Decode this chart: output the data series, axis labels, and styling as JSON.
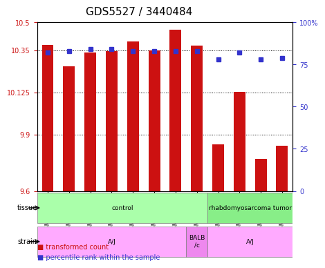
{
  "title": "GDS5527 / 3440484",
  "samples": [
    "GSM738156",
    "GSM738160",
    "GSM738161",
    "GSM738162",
    "GSM738164",
    "GSM738165",
    "GSM738166",
    "GSM738163",
    "GSM738155",
    "GSM738157",
    "GSM738158",
    "GSM738159"
  ],
  "red_values": [
    10.38,
    10.265,
    10.34,
    10.345,
    10.4,
    10.35,
    10.46,
    10.375,
    9.85,
    10.13,
    9.77,
    9.84
  ],
  "blue_values": [
    82,
    83,
    84,
    84,
    83,
    83,
    83,
    83,
    78,
    82,
    78,
    79
  ],
  "ylim_left": [
    9.6,
    10.5
  ],
  "ylim_right": [
    0,
    100
  ],
  "yticks_left": [
    9.6,
    9.9,
    10.125,
    10.35,
    10.5
  ],
  "yticks_left_labels": [
    "9.6",
    "9.9",
    "10.125",
    "10.35",
    "10.5"
  ],
  "yticks_right": [
    0,
    25,
    50,
    75,
    100
  ],
  "yticks_right_labels": [
    "0",
    "25",
    "50",
    "75",
    "100%"
  ],
  "hlines": [
    9.9,
    10.125,
    10.35
  ],
  "bar_color": "#cc1111",
  "dot_color": "#3333cc",
  "tissue_groups": [
    {
      "label": "control",
      "start": 0,
      "end": 8,
      "color": "#aaffaa"
    },
    {
      "label": "rhabdomyosarcoma tumor",
      "start": 8,
      "end": 12,
      "color": "#88ee88"
    }
  ],
  "strain_groups": [
    {
      "label": "A/J",
      "start": 0,
      "end": 7,
      "color": "#ffaaff"
    },
    {
      "label": "BALB\n/c",
      "start": 7,
      "end": 8,
      "color": "#ee88ee"
    },
    {
      "label": "A/J",
      "start": 8,
      "end": 12,
      "color": "#ffaaff"
    }
  ],
  "legend_items": [
    {
      "color": "#cc1111",
      "label": "transformed count"
    },
    {
      "color": "#3333cc",
      "label": "percentile rank within the sample"
    }
  ],
  "bg_color": "#ffffff",
  "tick_label_color_left": "#cc1111",
  "tick_label_color_right": "#3333cc",
  "title_fontsize": 11,
  "axis_fontsize": 8,
  "bar_width": 0.55
}
